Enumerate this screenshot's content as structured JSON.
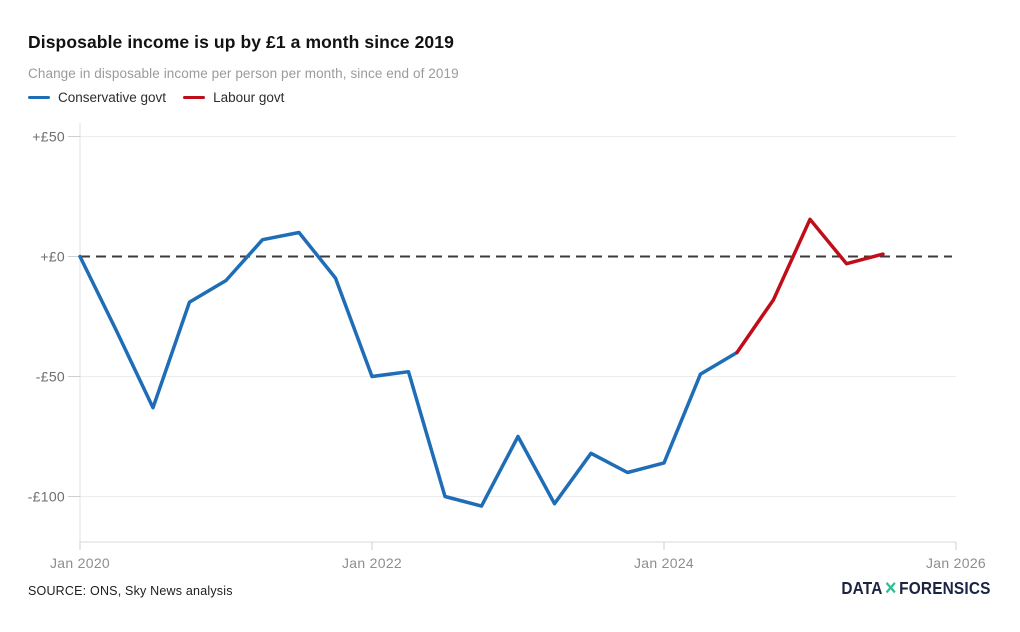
{
  "chart_data": {
    "type": "line",
    "title": "Disposable income is up by £1 a month since 2019",
    "subtitle": "Change in disposable income per person per month, since end of 2019",
    "unit": "£ per person per month",
    "categories": [
      "Jan 2020",
      "Apr 2020",
      "Jul 2020",
      "Oct 2020",
      "Jan 2021",
      "Apr 2021",
      "Jul 2021",
      "Oct 2021",
      "Jan 2022",
      "Apr 2022",
      "Jul 2022",
      "Oct 2022",
      "Jan 2023",
      "Apr 2023",
      "Jul 2023",
      "Oct 2023",
      "Jan 2024",
      "Apr 2024",
      "Jul 2024",
      "Oct 2024",
      "Jan 2025",
      "Apr 2025",
      "Jul 2025"
    ],
    "series": [
      {
        "name": "Conservative govt",
        "color": "#1e6db6",
        "start_index": 0,
        "values": [
          0,
          -31,
          -63,
          -19,
          -10,
          7,
          10,
          -9,
          -50,
          -48,
          -100,
          -104,
          -75,
          -103,
          -82,
          -90,
          -86,
          -49,
          -40
        ]
      },
      {
        "name": "Labour govt",
        "color": "#c00d1a",
        "start_index": 18,
        "values": [
          -40,
          -18,
          15.5,
          -3,
          1
        ]
      }
    ],
    "y_ticks": [
      {
        "value": 50,
        "label": "+£50"
      },
      {
        "value": 0,
        "label": "+£0"
      },
      {
        "value": -50,
        "label": "-£50"
      },
      {
        "value": -100,
        "label": "-£100"
      }
    ],
    "x_ticks": [
      {
        "index": 0,
        "label": "Jan 2020"
      },
      {
        "index": 8,
        "label": "Jan 2022"
      },
      {
        "index": 16,
        "label": "Jan 2024"
      },
      {
        "index": 24,
        "label": "Jan 2026"
      }
    ],
    "ylim": [
      -119,
      56
    ],
    "grid": true,
    "zero_line_dashed": true,
    "legend_position": "top-left"
  },
  "footer": {
    "source": "SOURCE: ONS, Sky News analysis",
    "logo": {
      "part1": "DATA",
      "separator": "✕",
      "part2": "FORENSICS",
      "navy": "#1b2440",
      "teal": "#2fbe93"
    }
  }
}
